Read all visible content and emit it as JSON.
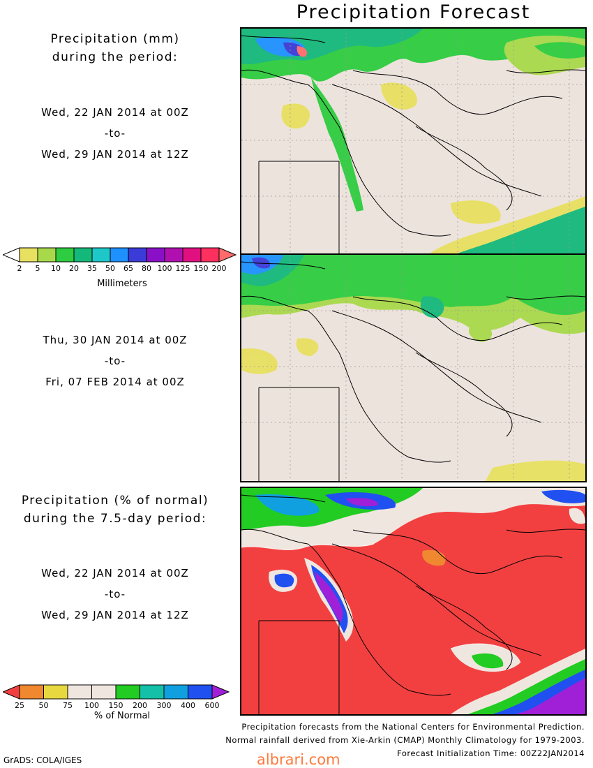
{
  "title": "Precipitation Forecast",
  "panel1": {
    "label_line1": "Precipitation (mm)",
    "label_line2": "during the period:",
    "date_from": "Wed, 22 JAN 2014 at 00Z",
    "to": "-to-",
    "date_to": "Wed, 29 JAN 2014 at 12Z"
  },
  "panel2": {
    "date_from": "Thu, 30 JAN 2014 at 00Z",
    "to": "-to-",
    "date_to": "Fri, 07 FEB 2014 at 00Z"
  },
  "panel3": {
    "label_line1": "Precipitation (% of normal)",
    "label_line2": "during the 7.5-day period:",
    "date_from": "Wed, 22 JAN 2014 at 00Z",
    "to": "-to-",
    "date_to": "Wed, 29 JAN 2014 at 12Z"
  },
  "legend_mm": {
    "unit": "Millimeters",
    "ticks": [
      "2",
      "5",
      "10",
      "20",
      "35",
      "50",
      "65",
      "80",
      "100",
      "125",
      "150",
      "200"
    ],
    "colors": [
      "#ffffff",
      "#e8e060",
      "#a8d94a",
      "#2ecc40",
      "#14b87a",
      "#1ec8c8",
      "#1e90ff",
      "#3b3bd8",
      "#8a10c8",
      "#b010b0",
      "#e01080",
      "#ff3060",
      "#ff6b6b"
    ]
  },
  "legend_pct": {
    "unit": "% of Normal",
    "ticks": [
      "25",
      "50",
      "75",
      "100",
      "150",
      "200",
      "300",
      "400",
      "600"
    ],
    "colors": [
      "#f24040",
      "#f08830",
      "#e8d840",
      "#f0e6e0",
      "#f0e6e0",
      "#22cc22",
      "#14c0a8",
      "#10a0e0",
      "#2050f0",
      "#a020d8"
    ]
  },
  "credits": {
    "line1": "Precipitation forecasts from the National Centers for Environmental Prediction.",
    "line2": "Normal rainfall derived from Xie-Arkin (CMAP) Monthly Climatology for 1979-2003.",
    "line3": "Forecast Initialization Time: 00Z22JAN2014"
  },
  "grads": "GrADS: COLA/IGES",
  "watermark": "albrari.com"
}
